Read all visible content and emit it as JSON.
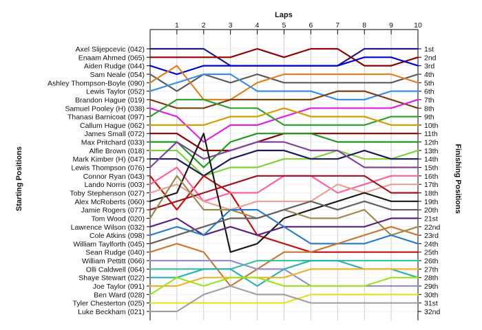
{
  "chart_data": {
    "type": "line",
    "title": "Laps",
    "ylabel_left": "Starting Positions",
    "ylabel_right": "Finishing Positions",
    "laps": [
      1,
      2,
      3,
      4,
      5,
      6,
      7,
      8,
      9,
      10
    ],
    "grid": true,
    "drivers": [
      "Axel Slijepcevic (042)",
      "Enaam Ahmed (065)",
      "Aiden Rudge (044)",
      "Sam Neale (054)",
      "Ashley Thompson-Boyle (090)",
      "Lewis Taylor (052)",
      "Brandon Hague (019)",
      "Samuel Pooley (H) (038)",
      "Thanasi Barnicoat (097)",
      "Callum Hague (062)",
      "James Small (072)",
      "Max Pritchard (033)",
      "Alfie Brown (018)",
      "Mark Kimber (H) (047)",
      "Lewis Thompson (076)",
      "Connor Ryan (043)",
      "Lando Norris (003)",
      "Toby Stephenson (027)",
      "Alex McRoberts (060)",
      "Jamie Rogers (077)",
      "Tom Wood (020)",
      "Lawrence Wilson (032)",
      "Cole Atkins (098)",
      "William Taylforth (045)",
      "Sean Rudge (040)",
      "William Pettitt (066)",
      "Olli Caldwell (064)",
      "Shaye Stewart (022)",
      "Joe Taylor (091)",
      "Ben Ward (028)",
      "Tyler Chesterton (025)",
      "Luke Beckham (021)"
    ],
    "finishing_positions": [
      "1st",
      "2nd",
      "3rd",
      "4th",
      "5th",
      "6th",
      "7th",
      "8th",
      "9th",
      "10th",
      "11th",
      "12th",
      "13th",
      "14th",
      "15th",
      "16th",
      "17th",
      "18th",
      "19th",
      "20th",
      "21st",
      "22nd",
      "23rd",
      "24th",
      "25th",
      "26th",
      "27th",
      "28th",
      "29th",
      "30th",
      "31st",
      "32nd"
    ],
    "series": [
      {
        "color": "#1a1a8a",
        "positions": [
          1,
          1,
          3,
          3,
          3,
          3,
          3,
          1,
          1,
          1
        ]
      },
      {
        "color": "#8b0000",
        "positions": [
          2,
          2,
          2,
          1,
          2,
          1,
          1,
          3,
          3,
          2
        ]
      },
      {
        "color": "#0000cc",
        "positions": [
          4,
          3,
          3,
          3,
          3,
          3,
          3,
          2,
          2,
          3
        ]
      },
      {
        "color": "#5a5a5a",
        "positions": [
          6,
          4,
          5,
          4,
          5,
          5,
          5,
          5,
          5,
          4
        ]
      },
      {
        "color": "#e08020",
        "positions": [
          3,
          7,
          7,
          5,
          4,
          4,
          4,
          4,
          4,
          5
        ]
      },
      {
        "color": "#3a8ee6",
        "positions": [
          5,
          4,
          4,
          6,
          6,
          6,
          7,
          7,
          6,
          6
        ]
      },
      {
        "color": "#7a4010",
        "positions": [
          8,
          8,
          7,
          7,
          7,
          7,
          6,
          6,
          7,
          8
        ]
      },
      {
        "color": "#e020e0",
        "positions": [
          9,
          12,
          10,
          10,
          9,
          8,
          8,
          8,
          8,
          7
        ]
      },
      {
        "color": "#30a030",
        "positions": [
          7,
          7,
          8,
          8,
          10,
          10,
          10,
          10,
          9,
          9
        ]
      },
      {
        "color": "#d0a000",
        "positions": [
          10,
          10,
          9,
          9,
          8,
          9,
          9,
          9,
          10,
          10
        ]
      },
      {
        "color": "#8b0000",
        "positions": [
          11,
          13,
          13,
          12,
          11,
          11,
          11,
          11,
          11,
          11
        ]
      },
      {
        "color": "#1a9a1a",
        "positions": [
          12,
          15,
          12,
          11,
          11,
          11,
          12,
          12,
          12,
          12
        ]
      },
      {
        "color": "#7fd03a",
        "positions": [
          13,
          16,
          15,
          15,
          14,
          14,
          13,
          14,
          14,
          13
        ]
      },
      {
        "color": "#1a1a5a",
        "positions": [
          14,
          16,
          14,
          13,
          13,
          14,
          14,
          13,
          14,
          14
        ]
      },
      {
        "color": "#8040a0",
        "positions": [
          12,
          14,
          13,
          12,
          12,
          13,
          13,
          15,
          15,
          15
        ]
      },
      {
        "color": "#c01010",
        "positions": [
          20,
          16,
          18,
          23,
          24,
          25,
          25,
          25,
          25,
          25
        ]
      },
      {
        "color": "#ff5f9e",
        "positions": [
          15,
          19,
          18,
          18,
          16,
          16,
          18,
          17,
          16,
          16
        ]
      },
      {
        "color": "#e8a090",
        "positions": [
          17,
          19,
          20,
          19,
          19,
          19,
          17,
          18,
          17,
          17
        ]
      },
      {
        "color": "#1a1a1a",
        "positions": [
          18,
          11,
          25,
          24,
          21,
          20,
          19,
          18,
          19,
          19
        ]
      },
      {
        "color": "#a01020",
        "positions": [
          19,
          18,
          17,
          16,
          16,
          16,
          16,
          16,
          18,
          18
        ]
      },
      {
        "color": "#9b8a50",
        "positions": [
          16,
          20,
          20,
          21,
          20,
          21,
          21,
          20,
          23,
          22
        ]
      },
      {
        "color": "#5a2080",
        "positions": [
          21,
          23,
          22,
          23,
          22,
          22,
          22,
          22,
          21,
          21
        ]
      },
      {
        "color": "#2a7ec8",
        "positions": [
          22,
          23,
          20,
          20,
          22,
          24,
          24,
          24,
          23,
          24
        ]
      },
      {
        "color": "#606060",
        "positions": [
          23,
          22,
          21,
          21,
          20,
          19,
          20,
          19,
          20,
          20
        ]
      },
      {
        "color": "#c87830",
        "positions": [
          24,
          25,
          29,
          27,
          25,
          25,
          24,
          23,
          22,
          23
        ]
      },
      {
        "color": "#9090d0",
        "positions": [
          26,
          26,
          26,
          27,
          27,
          29,
          29,
          29,
          29,
          29
        ]
      },
      {
        "color": "#40c0a0",
        "positions": [
          27,
          27,
          27,
          26,
          26,
          26,
          26,
          26,
          26,
          26
        ]
      },
      {
        "color": "#30b0b0",
        "positions": [
          28,
          27,
          27,
          29,
          27,
          26,
          26,
          27,
          27,
          28
        ]
      },
      {
        "color": "#f0b030",
        "positions": [
          29,
          28,
          28,
          28,
          28,
          27,
          27,
          27,
          27,
          27
        ]
      },
      {
        "color": "#a0e020",
        "positions": [
          28,
          29,
          28,
          28,
          29,
          29,
          29,
          29,
          28,
          28
        ]
      },
      {
        "color": "#e8e020",
        "positions": [
          31,
          31,
          31,
          31,
          31,
          30,
          30,
          30,
          30,
          30
        ]
      },
      {
        "color": "#a0a0a0",
        "positions": [
          32,
          30,
          29,
          30,
          30,
          31,
          31,
          31,
          31,
          31
        ]
      }
    ]
  }
}
